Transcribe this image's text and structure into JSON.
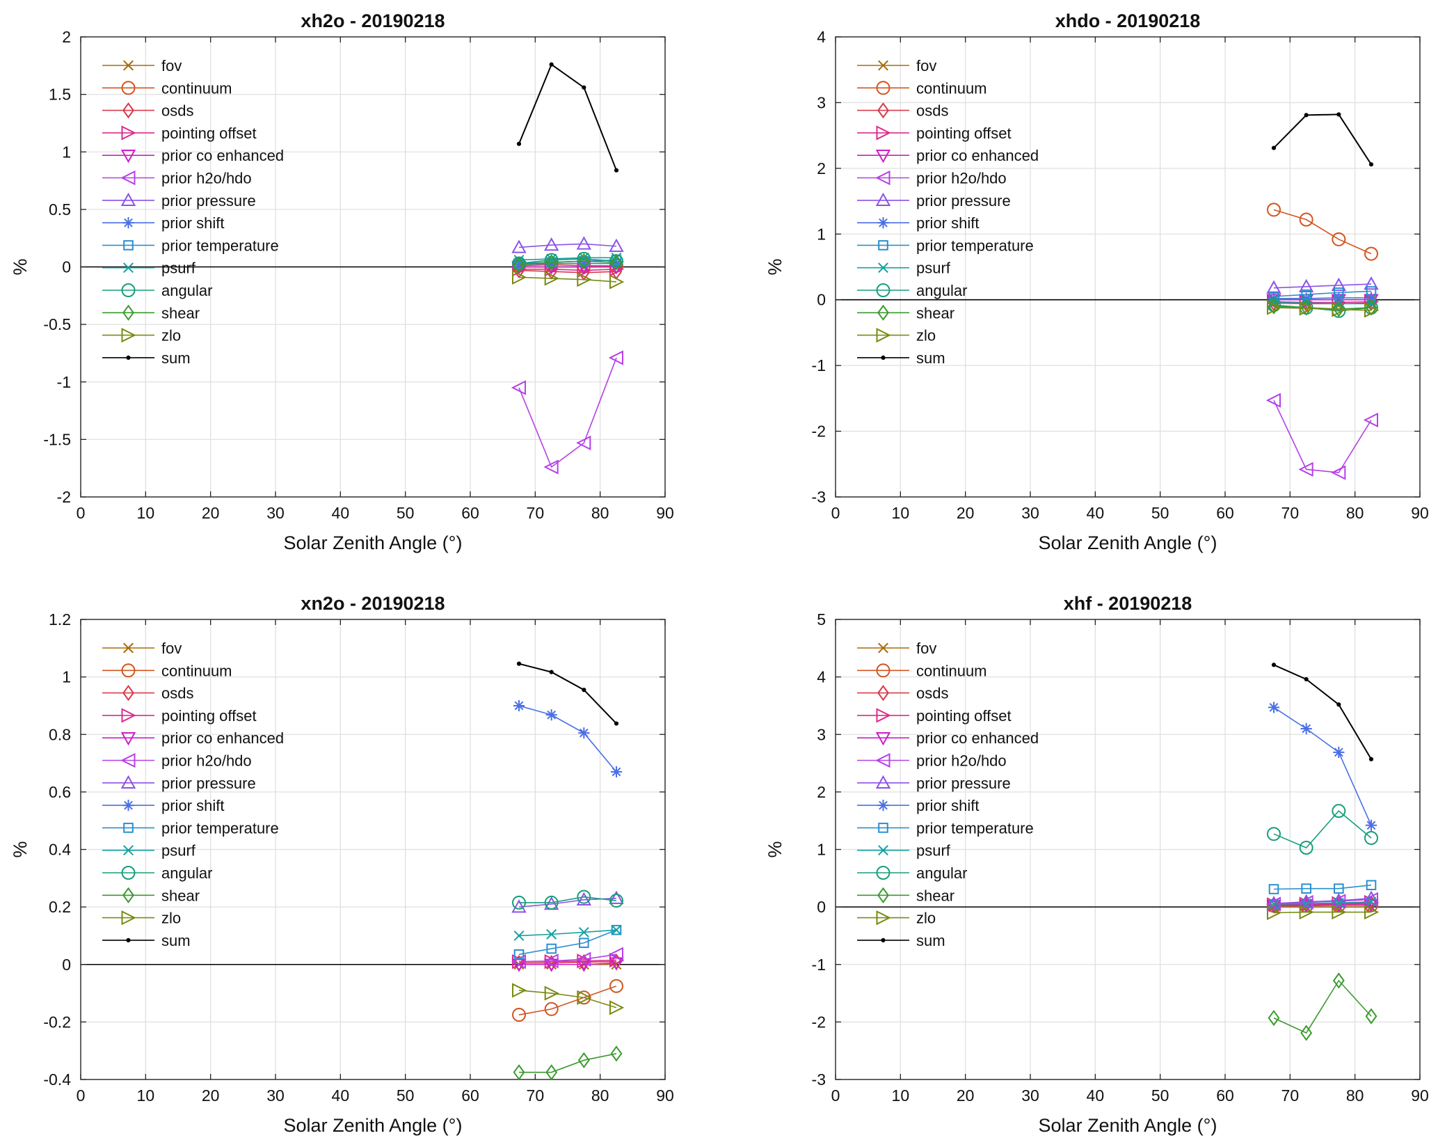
{
  "chart_data": [
    {
      "type": "line",
      "title": "xh2o - 20190218",
      "xlabel": "Solar Zenith Angle (°)",
      "ylabel": "%",
      "xlim": [
        0,
        90
      ],
      "ylim": [
        -2,
        2
      ],
      "xticks": [
        0,
        10,
        20,
        30,
        40,
        50,
        60,
        70,
        80,
        90
      ],
      "yticks": [
        -2,
        -1.5,
        -1,
        -0.5,
        0,
        0.5,
        1,
        1.5,
        2
      ],
      "ytick_labels": [
        "-2",
        "-1.5",
        "-1",
        "-0.5",
        "0",
        "0.5",
        "1",
        "1.5",
        "2"
      ],
      "grid": true,
      "legend_position": "top-left",
      "x": [
        67.5,
        72.5,
        77.5,
        82.5
      ],
      "series": [
        {
          "name": "fov",
          "values": [
            0.0,
            0.0,
            0.0,
            0.0
          ]
        },
        {
          "name": "continuum",
          "values": [
            0.01,
            0.02,
            0.01,
            0.01
          ]
        },
        {
          "name": "osds",
          "values": [
            -0.03,
            -0.04,
            -0.05,
            -0.04
          ]
        },
        {
          "name": "pointing offset",
          "values": [
            -0.02,
            -0.02,
            -0.03,
            -0.02
          ]
        },
        {
          "name": "prior co enhanced",
          "values": [
            0.0,
            0.0,
            0.0,
            0.0
          ]
        },
        {
          "name": "prior h2o/hdo",
          "values": [
            -1.05,
            -1.74,
            -1.53,
            -0.79
          ]
        },
        {
          "name": "prior pressure",
          "values": [
            0.17,
            0.19,
            0.2,
            0.18
          ]
        },
        {
          "name": "prior shift",
          "values": [
            0.02,
            0.03,
            0.03,
            0.03
          ]
        },
        {
          "name": "prior temperature",
          "values": [
            0.03,
            0.04,
            0.05,
            0.06
          ]
        },
        {
          "name": "psurf",
          "values": [
            0.06,
            0.07,
            0.08,
            0.08
          ]
        },
        {
          "name": "angular",
          "values": [
            0.03,
            0.06,
            0.07,
            0.05
          ]
        },
        {
          "name": "shear",
          "values": [
            0.02,
            0.04,
            0.05,
            0.04
          ]
        },
        {
          "name": "zlo",
          "values": [
            -0.09,
            -0.1,
            -0.11,
            -0.13
          ]
        },
        {
          "name": "sum",
          "values": [
            1.07,
            1.76,
            1.56,
            0.84
          ]
        }
      ]
    },
    {
      "type": "line",
      "title": "xhdo - 20190218",
      "xlabel": "Solar Zenith Angle (°)",
      "ylabel": "%",
      "xlim": [
        0,
        90
      ],
      "ylim": [
        -3,
        4
      ],
      "xticks": [
        0,
        10,
        20,
        30,
        40,
        50,
        60,
        70,
        80,
        90
      ],
      "yticks": [
        -3,
        -2,
        -1,
        0,
        1,
        2,
        3,
        4
      ],
      "ytick_labels": [
        "-3",
        "-2",
        "-1",
        "0",
        "1",
        "2",
        "3",
        "4"
      ],
      "grid": true,
      "legend_position": "top-left",
      "x": [
        67.5,
        72.5,
        77.5,
        82.5
      ],
      "series": [
        {
          "name": "fov",
          "values": [
            0.0,
            0.0,
            0.0,
            0.0
          ]
        },
        {
          "name": "continuum",
          "values": [
            1.37,
            1.22,
            0.92,
            0.7
          ]
        },
        {
          "name": "osds",
          "values": [
            -0.05,
            -0.06,
            -0.06,
            -0.05
          ]
        },
        {
          "name": "pointing offset",
          "values": [
            -0.03,
            -0.04,
            -0.04,
            -0.03
          ]
        },
        {
          "name": "prior co enhanced",
          "values": [
            0.0,
            0.0,
            0.0,
            0.0
          ]
        },
        {
          "name": "prior h2o/hdo",
          "values": [
            -1.53,
            -2.58,
            -2.63,
            -1.83
          ]
        },
        {
          "name": "prior pressure",
          "values": [
            0.18,
            0.2,
            0.22,
            0.24
          ]
        },
        {
          "name": "prior shift",
          "values": [
            0.02,
            0.02,
            0.03,
            0.03
          ]
        },
        {
          "name": "prior temperature",
          "values": [
            0.05,
            0.08,
            0.11,
            0.13
          ]
        },
        {
          "name": "psurf",
          "values": [
            -0.04,
            -0.05,
            -0.06,
            -0.06
          ]
        },
        {
          "name": "angular",
          "values": [
            -0.08,
            -0.12,
            -0.17,
            -0.12
          ]
        },
        {
          "name": "shear",
          "values": [
            -0.1,
            -0.12,
            -0.14,
            -0.12
          ]
        },
        {
          "name": "zlo",
          "values": [
            -0.12,
            -0.13,
            -0.15,
            -0.16
          ]
        },
        {
          "name": "sum",
          "values": [
            2.31,
            2.81,
            2.82,
            2.06
          ]
        }
      ]
    },
    {
      "type": "line",
      "title": "xn2o - 20190218",
      "xlabel": "Solar Zenith Angle (°)",
      "ylabel": "%",
      "xlim": [
        0,
        90
      ],
      "ylim": [
        -0.4,
        1.2
      ],
      "xticks": [
        0,
        10,
        20,
        30,
        40,
        50,
        60,
        70,
        80,
        90
      ],
      "yticks": [
        -0.4,
        -0.2,
        0,
        0.2,
        0.4,
        0.6,
        0.8,
        1,
        1.2
      ],
      "ytick_labels": [
        "-0.4",
        "-0.2",
        "0",
        "0.2",
        "0.4",
        "0.6",
        "0.8",
        "1",
        "1.2"
      ],
      "grid": true,
      "legend_position": "top-left",
      "x": [
        67.5,
        72.5,
        77.5,
        82.5
      ],
      "series": [
        {
          "name": "fov",
          "values": [
            0.0,
            0.0,
            0.0,
            0.0
          ]
        },
        {
          "name": "continuum",
          "values": [
            -0.175,
            -0.155,
            -0.115,
            -0.075
          ]
        },
        {
          "name": "osds",
          "values": [
            0.005,
            0.005,
            0.008,
            0.01
          ]
        },
        {
          "name": "pointing offset",
          "values": [
            0.01,
            0.01,
            0.012,
            0.015
          ]
        },
        {
          "name": "prior co enhanced",
          "values": [
            0.0,
            0.0,
            0.0,
            0.005
          ]
        },
        {
          "name": "prior h2o/hdo",
          "values": [
            0.01,
            0.012,
            0.018,
            0.035
          ]
        },
        {
          "name": "prior pressure",
          "values": [
            0.2,
            0.21,
            0.225,
            0.23
          ]
        },
        {
          "name": "prior shift",
          "values": [
            0.9,
            0.868,
            0.805,
            0.67
          ]
        },
        {
          "name": "prior temperature",
          "values": [
            0.035,
            0.055,
            0.075,
            0.12
          ]
        },
        {
          "name": "psurf",
          "values": [
            0.1,
            0.105,
            0.112,
            0.12
          ]
        },
        {
          "name": "angular",
          "values": [
            0.215,
            0.215,
            0.235,
            0.222
          ]
        },
        {
          "name": "shear",
          "values": [
            -0.375,
            -0.375,
            -0.333,
            -0.31
          ]
        },
        {
          "name": "zlo",
          "values": [
            -0.09,
            -0.1,
            -0.115,
            -0.15
          ]
        },
        {
          "name": "sum",
          "values": [
            1.046,
            1.017,
            0.955,
            0.838
          ]
        }
      ]
    },
    {
      "type": "line",
      "title": "xhf - 20190218",
      "xlabel": "Solar Zenith Angle (°)",
      "ylabel": "%",
      "xlim": [
        0,
        90
      ],
      "ylim": [
        -3,
        5
      ],
      "xticks": [
        0,
        10,
        20,
        30,
        40,
        50,
        60,
        70,
        80,
        90
      ],
      "yticks": [
        -3,
        -2,
        -1,
        0,
        1,
        2,
        3,
        4,
        5
      ],
      "ytick_labels": [
        "-3",
        "-2",
        "-1",
        "0",
        "1",
        "2",
        "3",
        "4",
        "5"
      ],
      "grid": true,
      "legend_position": "top-left",
      "x": [
        67.5,
        72.5,
        77.5,
        82.5
      ],
      "series": [
        {
          "name": "fov",
          "values": [
            0.0,
            0.0,
            0.0,
            0.0
          ]
        },
        {
          "name": "continuum",
          "values": [
            0.02,
            0.02,
            0.03,
            0.03
          ]
        },
        {
          "name": "osds",
          "values": [
            0.03,
            0.04,
            0.05,
            0.06
          ]
        },
        {
          "name": "pointing offset",
          "values": [
            0.04,
            0.05,
            0.06,
            0.08
          ]
        },
        {
          "name": "prior co enhanced",
          "values": [
            0.02,
            0.03,
            0.03,
            0.04
          ]
        },
        {
          "name": "prior h2o/hdo",
          "values": [
            0.05,
            0.08,
            0.1,
            0.13
          ]
        },
        {
          "name": "prior pressure",
          "values": [
            0.06,
            0.09,
            0.11,
            0.15
          ]
        },
        {
          "name": "prior shift",
          "values": [
            3.47,
            3.1,
            2.69,
            1.42
          ]
        },
        {
          "name": "prior temperature",
          "values": [
            0.31,
            0.32,
            0.32,
            0.38
          ]
        },
        {
          "name": "psurf",
          "values": [
            0.05,
            0.06,
            0.07,
            0.09
          ]
        },
        {
          "name": "angular",
          "values": [
            1.27,
            1.03,
            1.67,
            1.2
          ]
        },
        {
          "name": "shear",
          "values": [
            -1.93,
            -2.19,
            -1.28,
            -1.9
          ]
        },
        {
          "name": "zlo",
          "values": [
            -0.1,
            -0.09,
            -0.09,
            -0.09
          ]
        },
        {
          "name": "sum",
          "values": [
            4.21,
            3.96,
            3.52,
            2.57
          ]
        }
      ]
    }
  ],
  "series_styles": [
    {
      "name": "fov",
      "color": "#a66b0c",
      "marker": "x"
    },
    {
      "name": "continuum",
      "color": "#d2541f",
      "marker": "o"
    },
    {
      "name": "osds",
      "color": "#d83a4b",
      "marker": "d"
    },
    {
      "name": "pointing offset",
      "color": "#dd2a8c",
      "marker": ">"
    },
    {
      "name": "prior co enhanced",
      "color": "#cc1fc7",
      "marker": "v"
    },
    {
      "name": "prior h2o/hdo",
      "color": "#b540e6",
      "marker": "<"
    },
    {
      "name": "prior pressure",
      "color": "#8c52e6",
      "marker": "^"
    },
    {
      "name": "prior shift",
      "color": "#4a6fe6",
      "marker": "*"
    },
    {
      "name": "prior temperature",
      "color": "#2a8fcf",
      "marker": "s"
    },
    {
      "name": "psurf",
      "color": "#16a0a0",
      "marker": "x"
    },
    {
      "name": "angular",
      "color": "#169e7a",
      "marker": "o"
    },
    {
      "name": "shear",
      "color": "#3a9a2e",
      "marker": "d"
    },
    {
      "name": "zlo",
      "color": "#7a8a12",
      "marker": ">"
    },
    {
      "name": "sum",
      "color": "#000000",
      "marker": "."
    }
  ]
}
